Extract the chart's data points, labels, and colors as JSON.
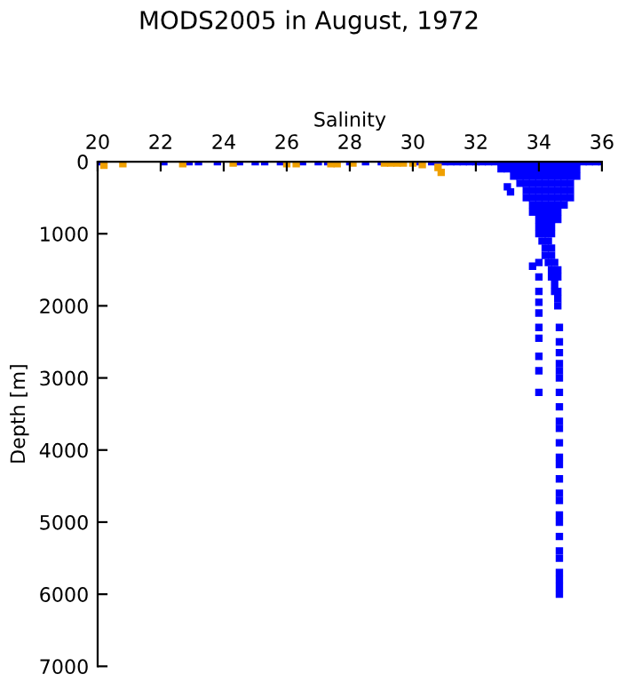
{
  "chart_data": {
    "type": "scatter",
    "title": "MODS2005 in August, 1972",
    "xlabel": "Salinity",
    "ylabel": "Depth [m]",
    "xlim": [
      20,
      36
    ],
    "xticks": [
      20,
      22,
      24,
      26,
      28,
      30,
      32,
      34,
      36
    ],
    "ylim": [
      7000,
      0
    ],
    "yticks": [
      0,
      1000,
      2000,
      3000,
      4000,
      5000,
      6000,
      7000
    ],
    "grid": false,
    "legend": false,
    "marker": "square",
    "series": [
      {
        "color": "#0000ff",
        "x": [
          20.0,
          22.1,
          22.9,
          23.2,
          23.8,
          24.5,
          25.0,
          25.3,
          25.8,
          26.5,
          27.0,
          27.3,
          28.0,
          28.5,
          29.0,
          30.2,
          30.6,
          30.8,
          31.0,
          31.2,
          31.4,
          31.6,
          31.8,
          32.0,
          32.2,
          32.4,
          32.6,
          32.8,
          33.0,
          33.2,
          33.4,
          33.6,
          33.8,
          34.0,
          34.2,
          34.4,
          34.6,
          34.8,
          35.0,
          35.2,
          35.4,
          35.6,
          35.8,
          36.0,
          32.8,
          33.0,
          33.2,
          33.4,
          33.6,
          33.8,
          34.0,
          34.2,
          34.4,
          34.6,
          34.8,
          35.0,
          35.2,
          33.2,
          33.4,
          33.6,
          33.8,
          34.0,
          34.2,
          34.4,
          34.6,
          34.8,
          35.0,
          35.2,
          33.4,
          33.6,
          33.8,
          34.0,
          34.2,
          34.4,
          34.6,
          34.8,
          35.0,
          33.6,
          33.8,
          34.0,
          34.2,
          34.4,
          34.6,
          34.8,
          35.0,
          33.6,
          33.8,
          34.0,
          34.2,
          34.4,
          34.6,
          34.8,
          33.8,
          34.0,
          34.2,
          34.4,
          34.6,
          34.8,
          33.8,
          34.0,
          34.2,
          34.4,
          34.6,
          34.0,
          34.2,
          34.4,
          34.6,
          34.0,
          34.2,
          34.4,
          34.0,
          34.2,
          34.4,
          34.1,
          34.3,
          34.2,
          34.4,
          34.2,
          34.4,
          34.3,
          34.5,
          34.4,
          34.6,
          34.4,
          34.6,
          34.5,
          34.5,
          34.6,
          34.6,
          34.6,
          33.0,
          33.1,
          35.0,
          33.8,
          34.0,
          34.0,
          34.0,
          34.0,
          34.0,
          34.0,
          34.0,
          34.0,
          34.0,
          34.0,
          34.65,
          34.65,
          34.65,
          34.65,
          34.65,
          34.65,
          34.65,
          34.65,
          34.65,
          34.65,
          34.65,
          34.65,
          34.65,
          34.65,
          34.65,
          34.65,
          34.65,
          34.65,
          34.65,
          34.65,
          34.65,
          34.65,
          34.65,
          34.65,
          34.65
        ],
        "values": [
          0,
          0,
          0,
          0,
          0,
          0,
          0,
          0,
          0,
          0,
          0,
          0,
          0,
          0,
          0,
          0,
          0,
          0,
          0,
          0,
          0,
          0,
          0,
          0,
          0,
          0,
          0,
          0,
          0,
          0,
          0,
          0,
          0,
          0,
          0,
          0,
          0,
          0,
          0,
          0,
          0,
          0,
          0,
          0,
          100,
          100,
          100,
          100,
          100,
          100,
          100,
          100,
          100,
          100,
          100,
          100,
          100,
          200,
          200,
          200,
          200,
          200,
          200,
          200,
          200,
          200,
          200,
          200,
          300,
          300,
          300,
          300,
          300,
          300,
          300,
          300,
          300,
          400,
          400,
          400,
          400,
          400,
          400,
          400,
          400,
          500,
          500,
          500,
          500,
          500,
          500,
          500,
          600,
          600,
          600,
          600,
          600,
          600,
          700,
          700,
          700,
          700,
          700,
          800,
          800,
          800,
          800,
          900,
          900,
          900,
          1000,
          1000,
          1000,
          1100,
          1100,
          1200,
          1200,
          1300,
          1300,
          1400,
          1400,
          1500,
          1500,
          1600,
          1600,
          1700,
          1800,
          1800,
          1900,
          2000,
          350,
          420,
          500,
          1450,
          1400,
          1600,
          1800,
          1950,
          2100,
          2300,
          2450,
          2700,
          2900,
          3200,
          2300,
          2500,
          2650,
          2800,
          2900,
          3000,
          3200,
          3400,
          3600,
          3700,
          3900,
          4100,
          4200,
          4400,
          4600,
          4700,
          4900,
          5000,
          5200,
          5400,
          5500,
          5700,
          5800,
          5900,
          6000
        ]
      },
      {
        "color": "#f0a000",
        "x": [
          20.2,
          20.8,
          22.7,
          24.3,
          26.0,
          26.3,
          27.4,
          27.6,
          28.1,
          29.1,
          29.3,
          29.5,
          29.7,
          30.0,
          30.3,
          30.8,
          30.9
        ],
        "values": [
          50,
          30,
          30,
          20,
          30,
          30,
          30,
          30,
          20,
          20,
          20,
          20,
          20,
          20,
          40,
          80,
          150
        ]
      }
    ]
  }
}
